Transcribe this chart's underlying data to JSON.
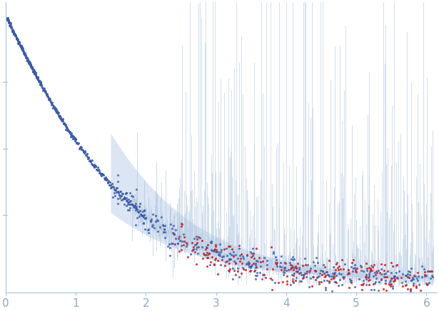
{
  "xlim": [
    0,
    6.15
  ],
  "ylim_data": [
    0,
    1.05
  ],
  "xticks": [
    0,
    1,
    2,
    3,
    4,
    5,
    6
  ],
  "background_color": "#ffffff",
  "envelope_color": "#c8d8ee",
  "spike_color": "#adc4de",
  "blue_dot_color": "#3a5aaa",
  "red_dot_color": "#cc2222",
  "dot_size": 5,
  "figsize": [
    6.15,
    4.37
  ],
  "dpi": 100,
  "tick_color": "#8aaac8",
  "spine_color": "#aac0d8"
}
